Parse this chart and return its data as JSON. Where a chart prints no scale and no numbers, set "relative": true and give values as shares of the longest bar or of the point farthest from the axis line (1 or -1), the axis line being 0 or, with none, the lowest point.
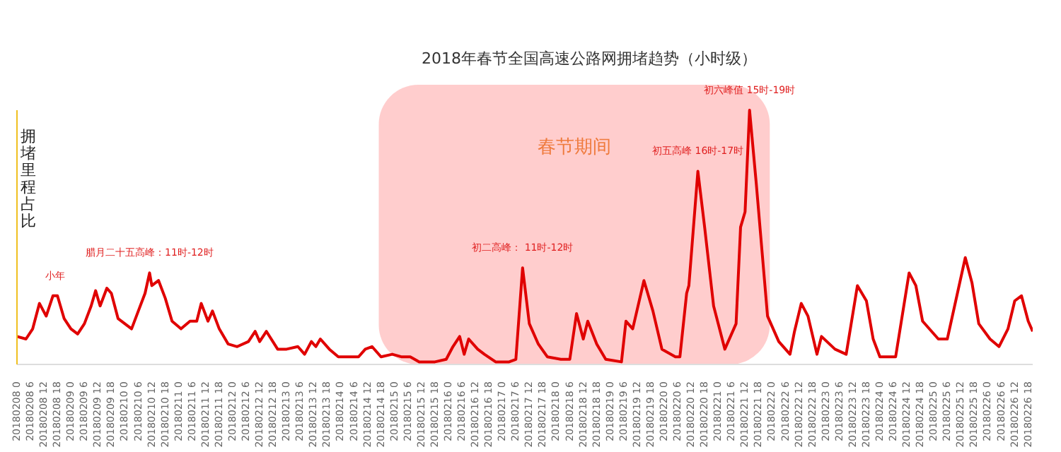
{
  "chart_data": {
    "type": "line",
    "title": "2018年春节全国高速公路网拥堵趋势（小时级）",
    "ylabel": "拥堵里程占比",
    "relative": true,
    "marker": "none",
    "grid": false,
    "legend": false,
    "series": [
      {
        "color": "#e00000",
        "x": [
          "2018-02-08T00:00",
          "2018-02-08T04:00",
          "2018-02-08T07:00",
          "2018-02-08T10:00",
          "2018-02-08T13:00",
          "2018-02-08T16:00",
          "2018-02-08T18:00",
          "2018-02-08T21:00",
          "2018-02-09T00:00",
          "2018-02-09T03:00",
          "2018-02-09T06:00",
          "2018-02-09T09:00",
          "2018-02-09T11:00",
          "2018-02-09T13:00",
          "2018-02-09T16:00",
          "2018-02-09T18:00",
          "2018-02-09T21:00",
          "2018-02-10T00:00",
          "2018-02-10T03:00",
          "2018-02-10T06:00",
          "2018-02-10T09:00",
          "2018-02-10T11:00",
          "2018-02-10T12:00",
          "2018-02-10T15:00",
          "2018-02-10T18:00",
          "2018-02-10T21:00",
          "2018-02-11T01:00",
          "2018-02-11T05:00",
          "2018-02-11T08:00",
          "2018-02-11T10:00",
          "2018-02-11T13:00",
          "2018-02-11T15:00",
          "2018-02-11T18:00",
          "2018-02-11T22:00",
          "2018-02-12T02:00",
          "2018-02-12T07:00",
          "2018-02-12T10:00",
          "2018-02-12T12:00",
          "2018-02-12T15:00",
          "2018-02-12T20:00",
          "2018-02-13T00:00",
          "2018-02-13T05:00",
          "2018-02-13T08:00",
          "2018-02-13T11:00",
          "2018-02-13T13:00",
          "2018-02-13T15:00",
          "2018-02-13T19:00",
          "2018-02-13T23:00",
          "2018-02-14T04:00",
          "2018-02-14T08:00",
          "2018-02-14T11:00",
          "2018-02-14T14:00",
          "2018-02-14T18:00",
          "2018-02-14T23:00",
          "2018-02-15T03:00",
          "2018-02-15T07:00",
          "2018-02-15T11:00",
          "2018-02-15T18:00",
          "2018-02-15T23:00",
          "2018-02-16T02:00",
          "2018-02-16T05:00",
          "2018-02-16T07:00",
          "2018-02-16T09:00",
          "2018-02-16T13:00",
          "2018-02-16T16:00",
          "2018-02-16T21:00",
          "2018-02-17T03:00",
          "2018-02-17T06:00",
          "2018-02-17T09:00",
          "2018-02-17T12:00",
          "2018-02-17T16:00",
          "2018-02-17T20:00",
          "2018-02-18T02:00",
          "2018-02-18T06:00",
          "2018-02-18T09:00",
          "2018-02-18T12:00",
          "2018-02-18T14:00",
          "2018-02-18T18:00",
          "2018-02-18T22:00",
          "2018-02-19T05:00",
          "2018-02-19T07:00",
          "2018-02-19T10:00",
          "2018-02-19T15:00",
          "2018-02-19T19:00",
          "2018-02-19T23:00",
          "2018-02-20T05:00",
          "2018-02-20T07:00",
          "2018-02-20T10:00",
          "2018-02-20T11:00",
          "2018-02-20T15:00",
          "2018-02-20T18:00",
          "2018-02-20T22:00",
          "2018-02-21T03:00",
          "2018-02-21T08:00",
          "2018-02-21T10:00",
          "2018-02-21T12:00",
          "2018-02-21T14:00",
          "2018-02-21T17:00",
          "2018-02-21T22:00",
          "2018-02-22T03:00",
          "2018-02-22T08:00",
          "2018-02-22T10:00",
          "2018-02-22T13:00",
          "2018-02-22T16:00",
          "2018-02-22T20:00",
          "2018-02-22T22:00",
          "2018-02-23T04:00",
          "2018-02-23T09:00",
          "2018-02-23T14:00",
          "2018-02-23T18:00",
          "2018-02-23T21:00",
          "2018-02-24T00:00",
          "2018-02-24T07:00",
          "2018-02-24T13:00",
          "2018-02-24T16:00",
          "2018-02-24T19:00",
          "2018-02-25T02:00",
          "2018-02-25T06:00",
          "2018-02-25T14:00",
          "2018-02-25T17:00",
          "2018-02-25T20:00",
          "2018-02-26T01:00",
          "2018-02-26T05:00",
          "2018-02-26T09:00",
          "2018-02-26T12:00",
          "2018-02-26T15:00",
          "2018-02-26T18:00",
          "2018-02-26T20:00"
        ],
        "values": [
          0.11,
          0.1,
          0.14,
          0.24,
          0.19,
          0.27,
          0.27,
          0.18,
          0.14,
          0.12,
          0.16,
          0.23,
          0.29,
          0.23,
          0.3,
          0.28,
          0.18,
          0.16,
          0.14,
          0.21,
          0.28,
          0.36,
          0.31,
          0.33,
          0.26,
          0.17,
          0.14,
          0.17,
          0.17,
          0.24,
          0.17,
          0.21,
          0.14,
          0.08,
          0.07,
          0.09,
          0.13,
          0.09,
          0.13,
          0.06,
          0.06,
          0.07,
          0.04,
          0.09,
          0.07,
          0.1,
          0.06,
          0.03,
          0.03,
          0.03,
          0.06,
          0.07,
          0.03,
          0.04,
          0.03,
          0.03,
          0.01,
          0.01,
          0.02,
          0.07,
          0.11,
          0.04,
          0.1,
          0.06,
          0.04,
          0.01,
          0.01,
          0.02,
          0.38,
          0.16,
          0.08,
          0.03,
          0.02,
          0.02,
          0.2,
          0.1,
          0.17,
          0.08,
          0.02,
          0.01,
          0.17,
          0.14,
          0.33,
          0.21,
          0.06,
          0.03,
          0.03,
          0.28,
          0.31,
          0.76,
          0.54,
          0.23,
          0.06,
          0.16,
          0.54,
          0.6,
          1,
          0.71,
          0.19,
          0.09,
          0.04,
          0.13,
          0.24,
          0.19,
          0.04,
          0.11,
          0.06,
          0.04,
          0.31,
          0.25,
          0.1,
          0.03,
          0.03,
          0.36,
          0.31,
          0.17,
          0.1,
          0.1,
          0.42,
          0.32,
          0.16,
          0.1,
          0.07,
          0.14,
          0.25,
          0.27,
          0.17,
          0.13
        ]
      }
    ],
    "xlim": [
      "2018-02-08T00:00",
      "2018-02-26T20:00"
    ],
    "xticks": [
      {
        "value": "2018-02-08T00:00",
        "label": "20180208 0"
      },
      {
        "value": "2018-02-08T06:00",
        "label": "20180208 6"
      },
      {
        "value": "2018-02-08T12:00",
        "label": "20180208 12"
      },
      {
        "value": "2018-02-08T18:00",
        "label": "20180208 18"
      },
      {
        "value": "2018-02-09T00:00",
        "label": "20180209 0"
      },
      {
        "value": "2018-02-09T06:00",
        "label": "20180209 6"
      },
      {
        "value": "2018-02-09T12:00",
        "label": "20180209 12"
      },
      {
        "value": "2018-02-09T18:00",
        "label": "20180209 18"
      },
      {
        "value": "2018-02-10T00:00",
        "label": "20180210 0"
      },
      {
        "value": "2018-02-10T06:00",
        "label": "20180210 6"
      },
      {
        "value": "2018-02-10T12:00",
        "label": "20180210 12"
      },
      {
        "value": "2018-02-10T18:00",
        "label": "20180210 18"
      },
      {
        "value": "2018-02-11T00:00",
        "label": "20180211 0"
      },
      {
        "value": "2018-02-11T06:00",
        "label": "20180211 6"
      },
      {
        "value": "2018-02-11T12:00",
        "label": "20180211 12"
      },
      {
        "value": "2018-02-11T18:00",
        "label": "20180211 18"
      },
      {
        "value": "2018-02-12T00:00",
        "label": "20180212 0"
      },
      {
        "value": "2018-02-12T06:00",
        "label": "20180212 6"
      },
      {
        "value": "2018-02-12T12:00",
        "label": "20180212 12"
      },
      {
        "value": "2018-02-12T18:00",
        "label": "20180212 18"
      },
      {
        "value": "2018-02-13T00:00",
        "label": "20180213 0"
      },
      {
        "value": "2018-02-13T06:00",
        "label": "20180213 6"
      },
      {
        "value": "2018-02-13T12:00",
        "label": "20180213 12"
      },
      {
        "value": "2018-02-13T18:00",
        "label": "20180213 18"
      },
      {
        "value": "2018-02-14T00:00",
        "label": "20180214 0"
      },
      {
        "value": "2018-02-14T06:00",
        "label": "20180214 6"
      },
      {
        "value": "2018-02-14T12:00",
        "label": "20180214 12"
      },
      {
        "value": "2018-02-14T18:00",
        "label": "20180214 18"
      },
      {
        "value": "2018-02-15T00:00",
        "label": "20180215 0"
      },
      {
        "value": "2018-02-15T06:00",
        "label": "20180215 6"
      },
      {
        "value": "2018-02-15T12:00",
        "label": "20180215 12"
      },
      {
        "value": "2018-02-15T18:00",
        "label": "20180215 18"
      },
      {
        "value": "2018-02-16T00:00",
        "label": "20180216 0"
      },
      {
        "value": "2018-02-16T06:00",
        "label": "20180216 6"
      },
      {
        "value": "2018-02-16T12:00",
        "label": "20180216 12"
      },
      {
        "value": "2018-02-16T18:00",
        "label": "20180216 18"
      },
      {
        "value": "2018-02-17T00:00",
        "label": "20180217 0"
      },
      {
        "value": "2018-02-17T06:00",
        "label": "20180217 6"
      },
      {
        "value": "2018-02-17T12:00",
        "label": "20180217 12"
      },
      {
        "value": "2018-02-17T18:00",
        "label": "20180217 18"
      },
      {
        "value": "2018-02-18T00:00",
        "label": "20180218 0"
      },
      {
        "value": "2018-02-18T06:00",
        "label": "20180218 6"
      },
      {
        "value": "2018-02-18T12:00",
        "label": "20180218 12"
      },
      {
        "value": "2018-02-18T18:00",
        "label": "20180218 18"
      },
      {
        "value": "2018-02-19T00:00",
        "label": "20180219 0"
      },
      {
        "value": "2018-02-19T06:00",
        "label": "20180219 6"
      },
      {
        "value": "2018-02-19T12:00",
        "label": "20180219 12"
      },
      {
        "value": "2018-02-19T18:00",
        "label": "20180219 18"
      },
      {
        "value": "2018-02-20T00:00",
        "label": "20180220 0"
      },
      {
        "value": "2018-02-20T06:00",
        "label": "20180220 6"
      },
      {
        "value": "2018-02-20T12:00",
        "label": "20180220 12"
      },
      {
        "value": "2018-02-20T18:00",
        "label": "20180220 18"
      },
      {
        "value": "2018-02-21T00:00",
        "label": "20180221 0"
      },
      {
        "value": "2018-02-21T06:00",
        "label": "20180221 6"
      },
      {
        "value": "2018-02-21T12:00",
        "label": "20180221 12"
      },
      {
        "value": "2018-02-21T18:00",
        "label": "20180221 18"
      },
      {
        "value": "2018-02-22T00:00",
        "label": "20180222 0"
      },
      {
        "value": "2018-02-22T06:00",
        "label": "20180222 6"
      },
      {
        "value": "2018-02-22T12:00",
        "label": "20180222 12"
      },
      {
        "value": "2018-02-22T18:00",
        "label": "20180222 18"
      },
      {
        "value": "2018-02-23T00:00",
        "label": "20180223 0"
      },
      {
        "value": "2018-02-23T06:00",
        "label": "20180223 6"
      },
      {
        "value": "2018-02-23T12:00",
        "label": "20180223 12"
      },
      {
        "value": "2018-02-23T18:00",
        "label": "20180223 18"
      },
      {
        "value": "2018-02-24T00:00",
        "label": "20180224 0"
      },
      {
        "value": "2018-02-24T06:00",
        "label": "20180224 6"
      },
      {
        "value": "2018-02-24T12:00",
        "label": "20180224 12"
      },
      {
        "value": "2018-02-24T18:00",
        "label": "20180224 18"
      },
      {
        "value": "2018-02-25T00:00",
        "label": "20180225 0"
      },
      {
        "value": "2018-02-25T06:00",
        "label": "20180225 6"
      },
      {
        "value": "2018-02-25T12:00",
        "label": "20180225 12"
      },
      {
        "value": "2018-02-25T18:00",
        "label": "20180225 18"
      },
      {
        "value": "2018-02-26T00:00",
        "label": "20180226 0"
      },
      {
        "value": "2018-02-26T06:00",
        "label": "20180226 6"
      },
      {
        "value": "2018-02-26T12:00",
        "label": "20180226 12"
      },
      {
        "value": "2018-02-26T18:00",
        "label": "20180226 18"
      }
    ],
    "bands": [
      {
        "axis": "x",
        "from": "2018-02-14T17:00",
        "to": "2018-02-21T23:00",
        "label": "春节期间",
        "color": "#ffc8c8"
      }
    ],
    "annotations": [
      {
        "text": "小年",
        "x": "2018-02-08T17:00",
        "y": 0.27
      },
      {
        "text": "腊月二十五高峰：11时-12时",
        "x": "2018-02-10T11:00",
        "y": 0.36
      },
      {
        "text": "初二高峰： 11时-12时",
        "x": "2018-02-17T09:00",
        "y": 0.38
      },
      {
        "text": "初五高峰 16时-17时",
        "x": "2018-02-20T15:00",
        "y": 0.76
      },
      {
        "text": "初六峰值 15时-19时",
        "x": "2018-02-21T14:00",
        "y": 1
      }
    ]
  }
}
